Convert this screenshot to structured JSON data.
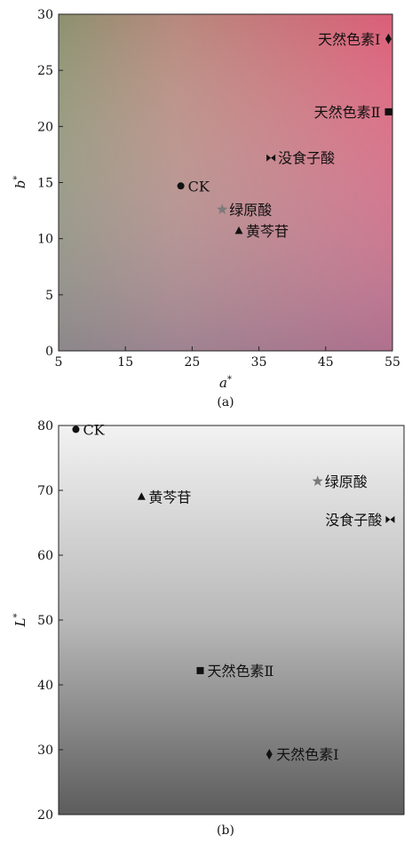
{
  "chart_data": [
    {
      "type": "scatter",
      "caption": "(a)",
      "xlabel": "a",
      "xlabel_superscript": "*",
      "ylabel": "b",
      "ylabel_superscript": "*",
      "xlim": [
        5,
        55
      ],
      "ylim": [
        0,
        30
      ],
      "xticks": [
        5,
        15,
        25,
        35,
        45,
        55
      ],
      "yticks": [
        0,
        5,
        10,
        15,
        20,
        25,
        30
      ],
      "background": "a*b* color-space gradient",
      "points": [
        {
          "label": "CK",
          "x": 23.3,
          "y": 14.7,
          "marker": "circle",
          "label_side": "right"
        },
        {
          "label": "绿原酸",
          "x": 29.5,
          "y": 12.6,
          "marker": "star",
          "label_side": "right"
        },
        {
          "label": "黄芩苷",
          "x": 32.0,
          "y": 10.7,
          "marker": "triangle",
          "label_side": "right"
        },
        {
          "label": "没食子酸",
          "x": 36.8,
          "y": 17.2,
          "marker": "bowtie",
          "label_side": "right"
        },
        {
          "label": "天然色素Ⅰ",
          "x": 54.4,
          "y": 27.8,
          "marker": "diamond",
          "label_side": "left"
        },
        {
          "label": "天然色素Ⅱ",
          "x": 54.4,
          "y": 21.3,
          "marker": "square",
          "label_side": "left"
        }
      ]
    },
    {
      "type": "scatter",
      "caption": "(b)",
      "ylabel": "L",
      "ylabel_superscript": "*",
      "ylim": [
        20,
        80
      ],
      "yticks": [
        20,
        30,
        40,
        50,
        60,
        70,
        80
      ],
      "background": "lightness gradient",
      "points": [
        {
          "label": "CK",
          "x": 0.05,
          "y": 79.4,
          "marker": "circle",
          "label_side": "right"
        },
        {
          "label": "黄芩苷",
          "x": 0.24,
          "y": 69.0,
          "marker": "triangle",
          "label_side": "right"
        },
        {
          "label": "绿原酸",
          "x": 0.75,
          "y": 71.4,
          "marker": "star",
          "label_side": "right"
        },
        {
          "label": "没食子酸",
          "x": 0.96,
          "y": 65.5,
          "marker": "bowtie",
          "label_side": "left"
        },
        {
          "label": "天然色素Ⅱ",
          "x": 0.41,
          "y": 42.2,
          "marker": "square",
          "label_side": "right"
        },
        {
          "label": "天然色素Ⅰ",
          "x": 0.61,
          "y": 29.3,
          "marker": "diamond",
          "label_side": "right"
        }
      ]
    }
  ]
}
